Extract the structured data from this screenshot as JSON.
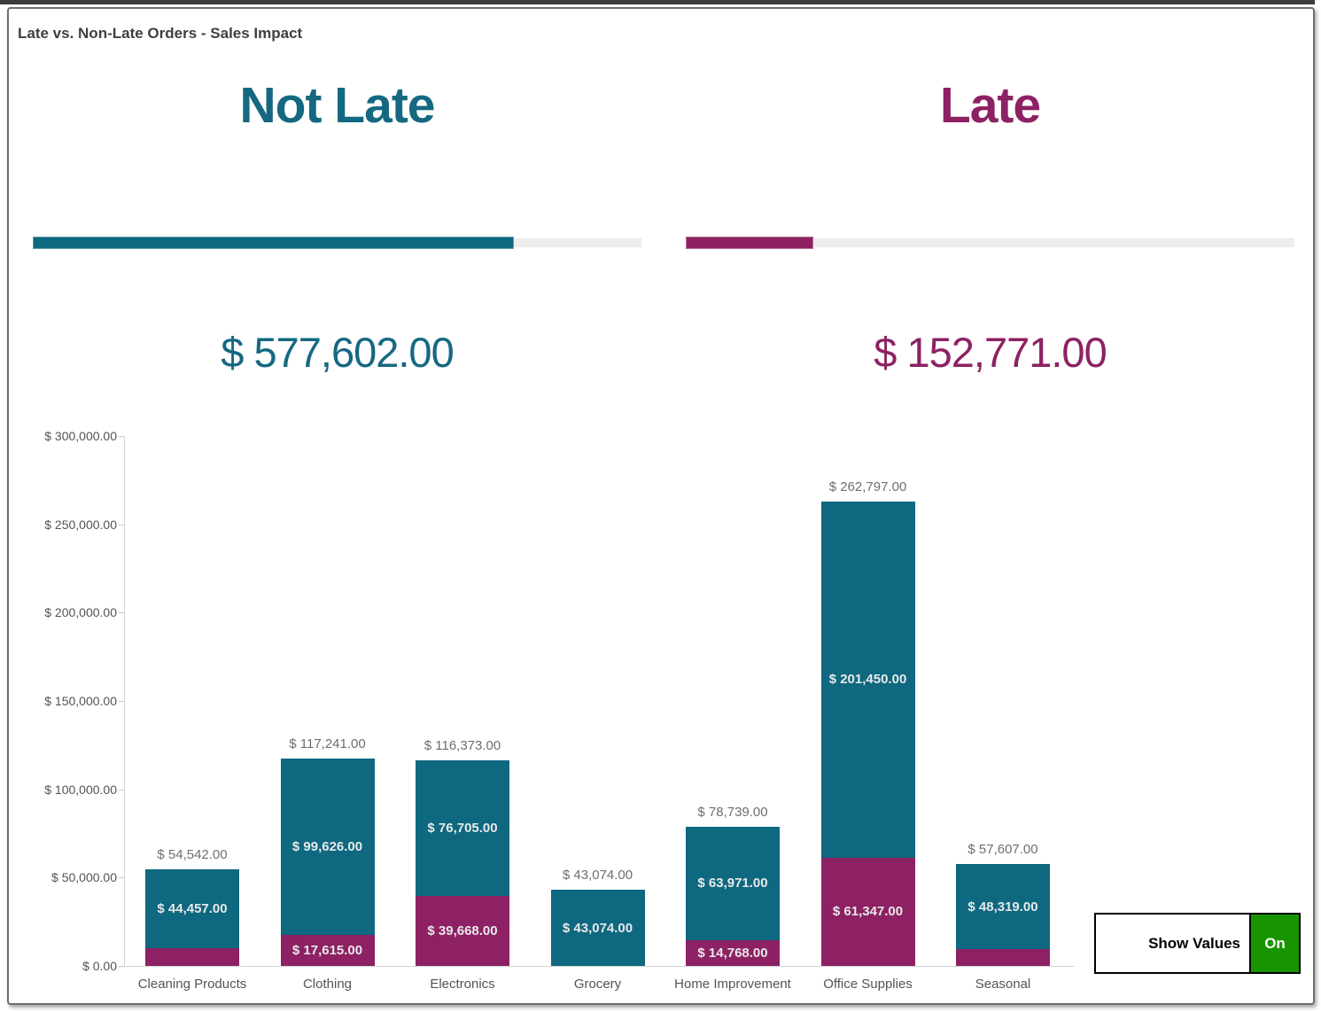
{
  "title": "Late vs. Non-Late Orders - Sales Impact",
  "colors": {
    "not_late": "#0e6880",
    "late": "#8d2163",
    "progress_track": "#ededed",
    "toggle_on_green": "#189400",
    "title_text": "#404040",
    "axis_text": "#545454",
    "total_label_text": "#6e6e6e",
    "segment_label_text": "#e9e9e9"
  },
  "kpis": {
    "not_late": {
      "label": "Not Late",
      "value": 577602,
      "value_display": "$ 577,602.00"
    },
    "late": {
      "label": "Late",
      "value": 152771,
      "value_display": "$ 152,771.00"
    }
  },
  "toggle": {
    "label": "Show Values",
    "state": "On"
  },
  "chart_data": {
    "type": "bar",
    "stacked": true,
    "categories": [
      "Cleaning Products",
      "Clothing",
      "Electronics",
      "Grocery",
      "Home Improvement",
      "Office Supplies",
      "Seasonal"
    ],
    "series": [
      {
        "name": "Late",
        "color_key": "late",
        "values": [
          10085,
          17615,
          39668,
          0,
          14768,
          61347,
          9288
        ],
        "labels": [
          null,
          "$ 17,615.00",
          "$ 39,668.00",
          null,
          "$ 14,768.00",
          "$ 61,347.00",
          null
        ]
      },
      {
        "name": "Not Late",
        "color_key": "not_late",
        "values": [
          44457,
          99626,
          76705,
          43074,
          63971,
          201450,
          48319
        ],
        "labels": [
          "$ 44,457.00",
          "$ 99,626.00",
          "$ 76,705.00",
          "$ 43,074.00",
          "$ 63,971.00",
          "$ 201,450.00",
          "$ 48,319.00"
        ]
      }
    ],
    "totals": [
      54542,
      117241,
      116373,
      43074,
      78739,
      262797,
      57607
    ],
    "total_labels": [
      "$ 54,542.00",
      "$ 117,241.00",
      "$ 116,373.00",
      "$ 43,074.00",
      "$ 78,739.00",
      "$ 262,797.00",
      "$ 57,607.00"
    ],
    "ylim": [
      0,
      300000
    ],
    "y_ticks": [
      0,
      50000,
      100000,
      150000,
      200000,
      250000,
      300000
    ],
    "y_tick_labels": [
      "$ 0.00",
      "$ 50,000.00",
      "$ 100,000.00",
      "$ 150,000.00",
      "$ 200,000.00",
      "$ 250,000.00",
      "$ 300,000.00"
    ],
    "grid": false,
    "legend": "none"
  }
}
